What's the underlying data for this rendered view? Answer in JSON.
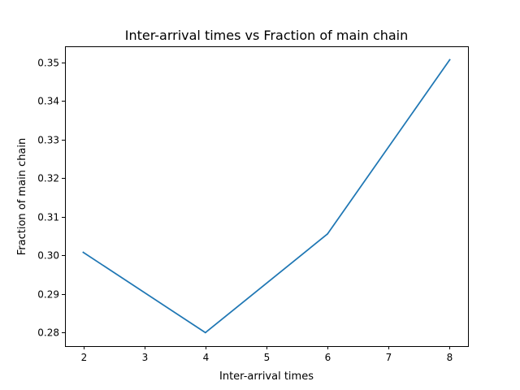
{
  "chart_data": {
    "type": "line",
    "title": "Inter-arrival times vs Fraction of main chain",
    "xlabel": "Inter-arrival times",
    "ylabel": "Fraction of main chain",
    "x": [
      2,
      4,
      6,
      8
    ],
    "series": [
      {
        "values": [
          0.3008,
          0.28,
          0.3056,
          0.3507
        ],
        "color": "#1f77b4"
      }
    ],
    "xlim": [
      1.7,
      8.3
    ],
    "ylim": [
      0.2765,
      0.3542
    ],
    "xticks": [
      2,
      3,
      4,
      5,
      6,
      7,
      8
    ],
    "xtick_labels": [
      "2",
      "3",
      "4",
      "5",
      "6",
      "7",
      "8"
    ],
    "yticks": [
      0.28,
      0.29,
      0.3,
      0.31,
      0.32,
      0.33,
      0.34,
      0.35
    ],
    "ytick_labels": [
      "0.28",
      "0.29",
      "0.30",
      "0.31",
      "0.32",
      "0.33",
      "0.34",
      "0.35"
    ],
    "grid": false,
    "legend": false
  }
}
